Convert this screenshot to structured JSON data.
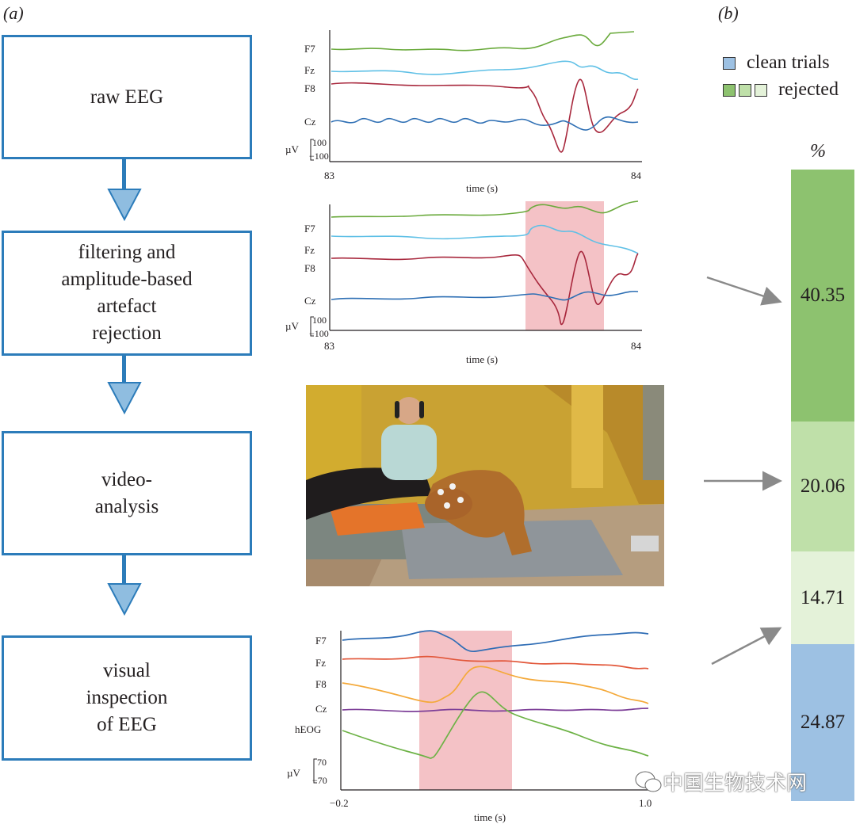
{
  "panel_a_label": "(a)",
  "panel_b_label": "(b)",
  "flow_steps": [
    "raw EEG",
    "filtering and\namplitude-based\nartefact\nrejection",
    "video-\nanalysis",
    "visual\ninspection\nof EEG"
  ],
  "eeg_plot_1": {
    "channels": [
      "F7",
      "Fz",
      "F8",
      "Cz"
    ],
    "scale_unit": "µV",
    "scale_top": "100",
    "scale_bottom": "−100",
    "x_start": "83",
    "x_end": "84",
    "xlabel": "time (s)",
    "colors": {
      "F7": "#6aaa3c",
      "Fz": "#5fc0e6",
      "F8": "#a8283d",
      "Cz": "#2e6fb4"
    }
  },
  "eeg_plot_2": {
    "channels": [
      "F7",
      "Fz",
      "F8",
      "Cz"
    ],
    "scale_unit": "µV",
    "scale_top": "100",
    "scale_bottom": "−100",
    "x_start": "83",
    "x_end": "84",
    "xlabel": "time (s)",
    "highlight_color": "#f4c2c6"
  },
  "eeg_plot_3": {
    "channels": [
      "F7",
      "Fz",
      "F8",
      "Cz",
      "hEOG"
    ],
    "scale_unit": "µV",
    "scale_top": "70",
    "scale_bottom": "−70",
    "x_start": "−0.2",
    "x_end": "1.0",
    "xlabel": "time (s)",
    "colors": {
      "F7": "#2f6db5",
      "Fz": "#e2573a",
      "F8": "#f4a93a",
      "Cz": "#7d3f98",
      "hEOG": "#6db246"
    }
  },
  "legend": {
    "clean_label": "clean trials",
    "rejected_label": "rejected",
    "clean_color": "#9dc1e3",
    "rejected_colors": [
      "#8dc26f",
      "#bfe0a9",
      "#e4f2d9"
    ]
  },
  "bar": {
    "unit": "%",
    "segments": [
      {
        "value": "40.35",
        "color": "#8dc26f"
      },
      {
        "value": "20.06",
        "color": "#bfe0a9"
      },
      {
        "value": "14.71",
        "color": "#e4f2d9"
      },
      {
        "value": "24.87",
        "color": "#9dc1e3"
      }
    ]
  },
  "watermark": "中国生物技术网"
}
